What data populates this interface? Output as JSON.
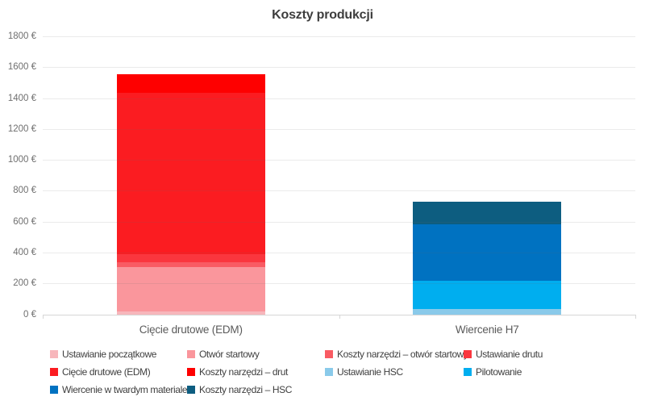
{
  "chart_data": {
    "type": "bar",
    "stacked": true,
    "title": "Koszty produkcji",
    "categories": [
      "Cięcie drutowe (EDM)",
      "Wiercenie H7"
    ],
    "ylim": [
      0,
      1800
    ],
    "ytick_step": 200,
    "yticks": [
      {
        "value": 0,
        "label": "0 €"
      },
      {
        "value": 200,
        "label": "200 €"
      },
      {
        "value": 400,
        "label": "400 €"
      },
      {
        "value": 600,
        "label": "600 €"
      },
      {
        "value": 800,
        "label": "800 €"
      },
      {
        "value": 1000,
        "label": "1000 €"
      },
      {
        "value": 1200,
        "label": "1200 €"
      },
      {
        "value": 1400,
        "label": "1400 €"
      },
      {
        "value": 1600,
        "label": "1600 €"
      },
      {
        "value": 1800,
        "label": "1800 €"
      }
    ],
    "series": [
      {
        "name": "Ustawianie początkowe",
        "color": "#F7B6BB",
        "values": [
          20,
          0
        ]
      },
      {
        "name": "Otwór startowy",
        "color": "#FA969C",
        "values": [
          285,
          0
        ]
      },
      {
        "name": "Koszty narzędzi – otwór startowy",
        "color": "#F95B63",
        "values": [
          30,
          0
        ]
      },
      {
        "name": "Ustawianie drutu",
        "color": "#FA363E",
        "values": [
          55,
          0
        ]
      },
      {
        "name": "Cięcie drutowe (EDM)",
        "color": "#FB1C21",
        "values": [
          1045,
          0
        ]
      },
      {
        "name": "Koszty narzędzi – drut",
        "color": "#FE0000",
        "values": [
          120,
          0
        ]
      },
      {
        "name": "Ustawianie HSC",
        "color": "#8ACAEA",
        "values": [
          0,
          35
        ]
      },
      {
        "name": "Pilotowanie",
        "color": "#00AEEF",
        "values": [
          0,
          180
        ]
      },
      {
        "name": "Wiercenie w twardym materiale",
        "color": "#0072C1",
        "values": [
          0,
          370
        ]
      },
      {
        "name": "Koszty narzędzi – HSC",
        "color": "#0D5D80",
        "values": [
          0,
          145
        ]
      }
    ],
    "grid": true,
    "legend_position": "bottom"
  }
}
